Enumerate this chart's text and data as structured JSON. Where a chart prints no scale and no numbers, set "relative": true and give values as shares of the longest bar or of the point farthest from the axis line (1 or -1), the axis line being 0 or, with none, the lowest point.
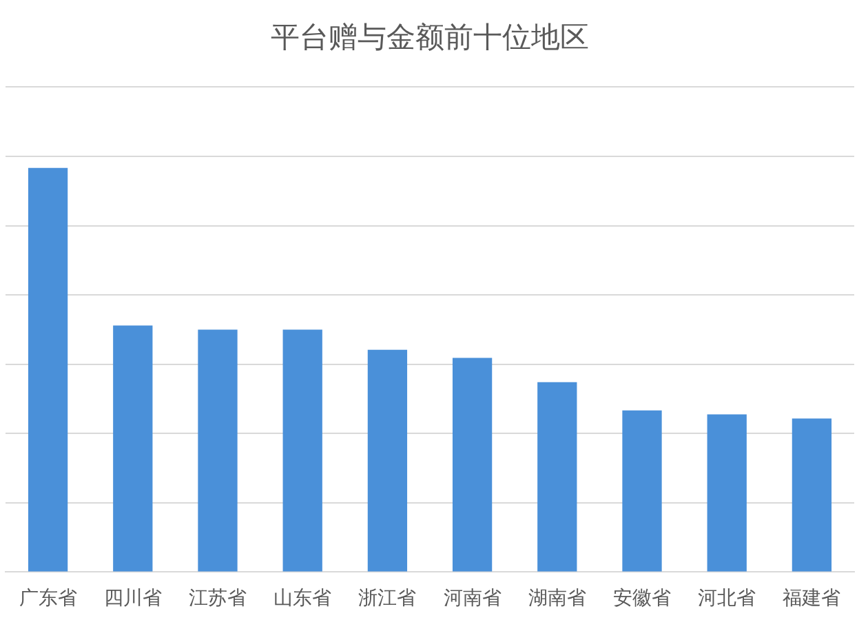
{
  "chart_data": {
    "type": "bar",
    "title": "平台赠与金额前十位地区",
    "categories": [
      "广东省",
      "四川省",
      "江苏省",
      "山东省",
      "浙江省",
      "河南省",
      "湖南省",
      "安徽省",
      "河北省",
      "福建省"
    ],
    "values": [
      1,
      0.61,
      0.6,
      0.6,
      0.55,
      0.53,
      0.47,
      0.4,
      0.39,
      0.38
    ],
    "color": "#4a90d9",
    "relative": true,
    "grid": "y"
  }
}
